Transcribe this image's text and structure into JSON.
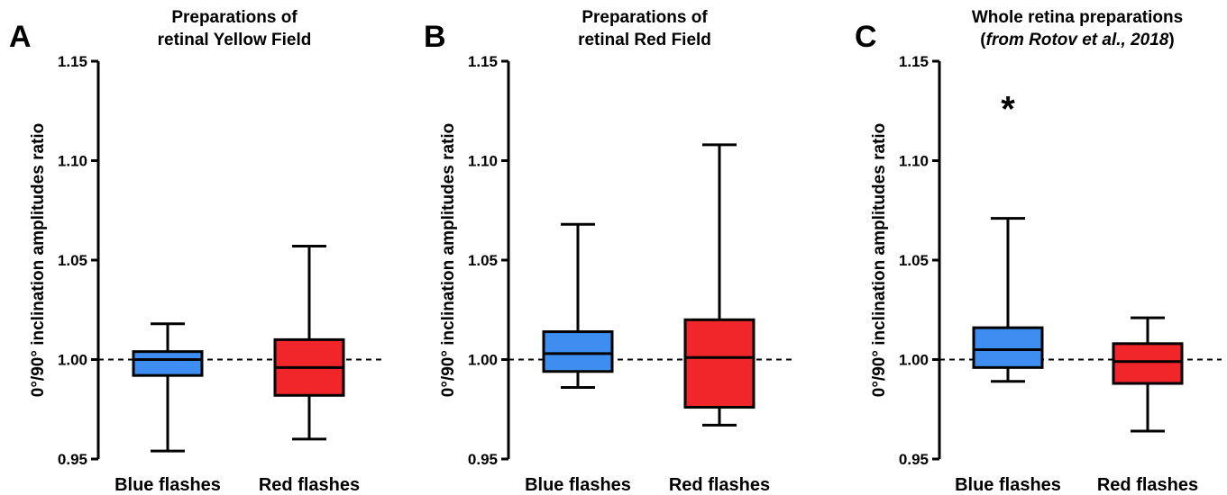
{
  "chart_data": [
    {
      "type": "box",
      "panel": "A",
      "title_lines": [
        "Preparations of",
        "retinal Yellow Field"
      ],
      "ylabel": "0°/90° inclination amplitudes ratio",
      "ylim": [
        0.95,
        1.15
      ],
      "y_ticks": [
        {
          "label": "0.95",
          "value": 0.95
        },
        {
          "label": "1.00",
          "value": 1.0
        },
        {
          "label": "1.05",
          "value": 1.05
        },
        {
          "label": "1.10",
          "value": 1.1
        },
        {
          "label": "1.15",
          "value": 1.15
        }
      ],
      "reference_line": 1.0,
      "categories": [
        "Blue flashes",
        "Red flashes"
      ],
      "boxes": [
        {
          "category": "Blue flashes",
          "color": "#3d8ef0",
          "min": 0.954,
          "q1": 0.992,
          "median": 1.0,
          "q3": 1.004,
          "max": 1.018
        },
        {
          "category": "Red flashes",
          "color": "#f0262a",
          "min": 0.96,
          "q1": 0.982,
          "median": 0.996,
          "q3": 1.01,
          "max": 1.057
        }
      ],
      "annotations": []
    },
    {
      "type": "box",
      "panel": "B",
      "title_lines": [
        "Preparations of",
        "retinal Red Field"
      ],
      "ylabel": "0°/90° inclination amplitudes ratio",
      "ylim": [
        0.95,
        1.15
      ],
      "y_ticks": [
        {
          "label": "0.95",
          "value": 0.95
        },
        {
          "label": "1.00",
          "value": 1.0
        },
        {
          "label": "1.05",
          "value": 1.05
        },
        {
          "label": "1.10",
          "value": 1.1
        },
        {
          "label": "1.15",
          "value": 1.15
        }
      ],
      "reference_line": 1.0,
      "categories": [
        "Blue flashes",
        "Red flashes"
      ],
      "boxes": [
        {
          "category": "Blue flashes",
          "color": "#3d8ef0",
          "min": 0.986,
          "q1": 0.994,
          "median": 1.003,
          "q3": 1.014,
          "max": 1.068
        },
        {
          "category": "Red flashes",
          "color": "#f0262a",
          "min": 0.967,
          "q1": 0.976,
          "median": 1.001,
          "q3": 1.02,
          "max": 1.108
        }
      ],
      "annotations": []
    },
    {
      "type": "box",
      "panel": "C",
      "title_lines": [
        "Whole retina preparations"
      ],
      "title_sub": {
        "open": "(",
        "italic": "from Rotov et al., 2018",
        "close": ")"
      },
      "ylabel": "0°/90° inclination amplitudes ratio",
      "ylim": [
        0.95,
        1.15
      ],
      "y_ticks": [
        {
          "label": "0.95",
          "value": 0.95
        },
        {
          "label": "1.00",
          "value": 1.0
        },
        {
          "label": "1.05",
          "value": 1.05
        },
        {
          "label": "1.10",
          "value": 1.1
        },
        {
          "label": "1.15",
          "value": 1.15
        }
      ],
      "reference_line": 1.0,
      "categories": [
        "Blue flashes",
        "Red flashes"
      ],
      "boxes": [
        {
          "category": "Blue flashes",
          "color": "#3d8ef0",
          "min": 0.989,
          "q1": 0.996,
          "median": 1.005,
          "q3": 1.016,
          "max": 1.071
        },
        {
          "category": "Red flashes",
          "color": "#f0262a",
          "min": 0.964,
          "q1": 0.988,
          "median": 0.999,
          "q3": 1.008,
          "max": 1.021
        }
      ],
      "annotations": [
        {
          "text": "*",
          "category": "Blue flashes",
          "y": 1.129
        }
      ]
    }
  ]
}
